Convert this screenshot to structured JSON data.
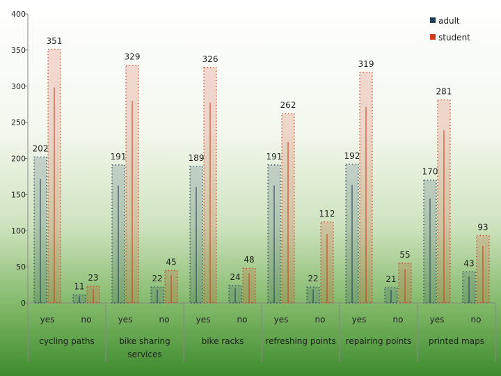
{
  "chart_data": {
    "type": "bar",
    "ylim": [
      0,
      400
    ],
    "yticks": [
      0,
      50,
      100,
      150,
      200,
      250,
      300,
      350,
      400
    ],
    "grid": false,
    "legend_position": "top-right",
    "categories": [
      {
        "group": "cycling paths",
        "answer": "yes"
      },
      {
        "group": "cycling paths",
        "answer": "no"
      },
      {
        "group": "bike sharing services",
        "answer": "yes"
      },
      {
        "group": "bike sharing services",
        "answer": "no"
      },
      {
        "group": "bike racks",
        "answer": "yes"
      },
      {
        "group": "bike racks",
        "answer": "no"
      },
      {
        "group": "refreshing points",
        "answer": "yes"
      },
      {
        "group": "refreshing points",
        "answer": "no"
      },
      {
        "group": "repairing points",
        "answer": "yes"
      },
      {
        "group": "repairing points",
        "answer": "no"
      },
      {
        "group": "printed maps",
        "answer": "yes"
      },
      {
        "group": "printed maps",
        "answer": "no"
      }
    ],
    "groups": [
      "cycling paths",
      "bike sharing services",
      "bike racks",
      "refreshing points",
      "repairing points",
      "printed maps"
    ],
    "series": [
      {
        "name": "adult",
        "color": "#1f3d5c",
        "values": [
          202,
          11,
          191,
          22,
          189,
          24,
          191,
          22,
          192,
          21,
          170,
          43
        ]
      },
      {
        "name": "student",
        "color": "#d23a1a",
        "values": [
          351,
          23,
          329,
          45,
          326,
          48,
          262,
          112,
          319,
          55,
          281,
          93
        ]
      }
    ]
  }
}
